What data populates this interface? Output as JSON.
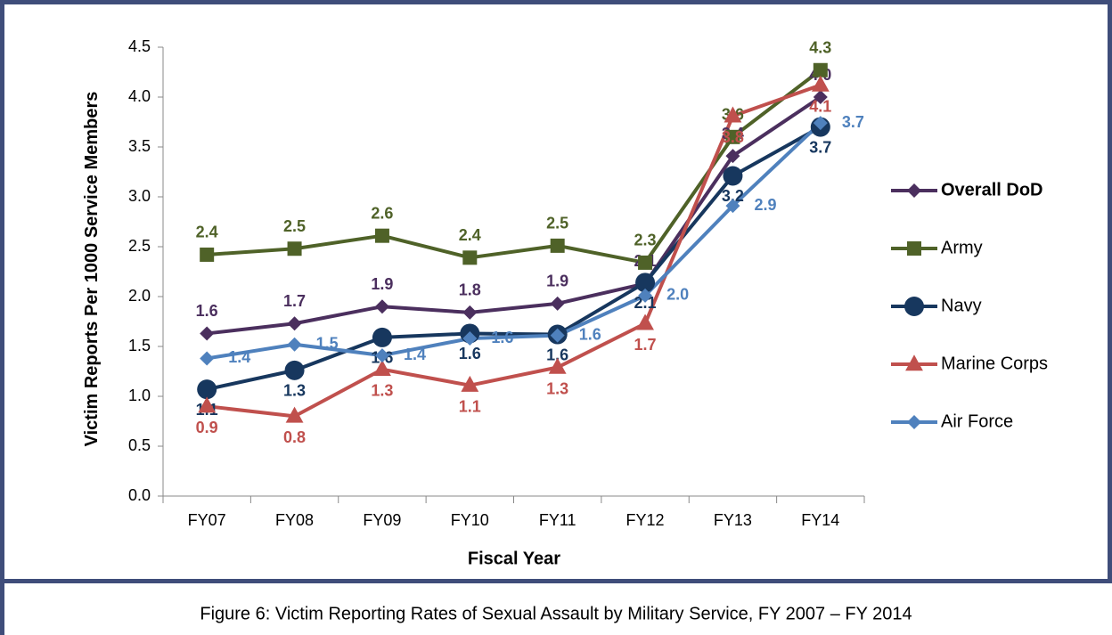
{
  "chart_data": {
    "type": "line",
    "caption": "Figure 6: Victim Reporting Rates of Sexual Assault by Military Service, FY 2007 – FY 2014",
    "x_label": "Fiscal Year",
    "y_label": "Victim Reports Per 1000 Service Members",
    "categories": [
      "FY07",
      "FY08",
      "FY09",
      "FY10",
      "FY11",
      "FY12",
      "FY13",
      "FY14"
    ],
    "ylim": [
      0,
      4.5
    ],
    "yticks": [
      {
        "value": 0,
        "label": "0.0"
      },
      0.5,
      {
        "value": 1,
        "label": "1.0"
      },
      1.5,
      {
        "value": 2,
        "label": "2.0"
      },
      2.5,
      {
        "value": 3,
        "label": "3.0"
      },
      3.5,
      {
        "value": 4,
        "label": "4.0"
      },
      4.5
    ],
    "legend": "right",
    "series": [
      {
        "name": "Overall DoD",
        "color": "#4b2f5e",
        "marker": "diamond",
        "values": [
          1.63,
          1.73,
          1.9,
          1.84,
          1.93,
          2.13,
          3.41,
          4.0
        ],
        "value_labels": [
          "1.6",
          "1.7",
          "1.9",
          "1.8",
          "1.9",
          "2.1",
          "3.4",
          "4.0"
        ]
      },
      {
        "name": "Army",
        "color": "#4f6228",
        "marker": "square",
        "values": [
          2.42,
          2.48,
          2.61,
          2.39,
          2.51,
          2.34,
          3.6,
          4.27
        ],
        "value_labels": [
          "2.4",
          "2.5",
          "2.6",
          "2.4",
          "2.5",
          "2.3",
          "3.6",
          "4.3"
        ]
      },
      {
        "name": "Navy",
        "color": "#17375e",
        "marker": "circle",
        "values": [
          1.07,
          1.26,
          1.59,
          1.63,
          1.62,
          2.14,
          3.21,
          3.7
        ],
        "value_labels": [
          "1.1",
          "1.3",
          "1.6",
          "1.6",
          "1.6",
          "2.1",
          "3.2",
          "3.7"
        ]
      },
      {
        "name": "Marine Corps",
        "color": "#c0504d",
        "marker": "triangle",
        "values": [
          0.9,
          0.8,
          1.27,
          1.11,
          1.29,
          1.73,
          3.81,
          4.12
        ],
        "value_labels": [
          "0.9",
          "0.8",
          "1.3",
          "1.1",
          "1.3",
          "1.7",
          "3.8",
          "4.1"
        ]
      },
      {
        "name": "Air Force",
        "color": "#4f81bd",
        "marker": "diamond",
        "values": [
          1.38,
          1.52,
          1.41,
          1.58,
          1.61,
          2.01,
          2.91,
          3.74
        ],
        "value_labels": [
          "1.4",
          "1.5",
          "1.4",
          "1.6",
          "1.6",
          "2.0",
          "2.9",
          "3.7"
        ]
      }
    ]
  }
}
